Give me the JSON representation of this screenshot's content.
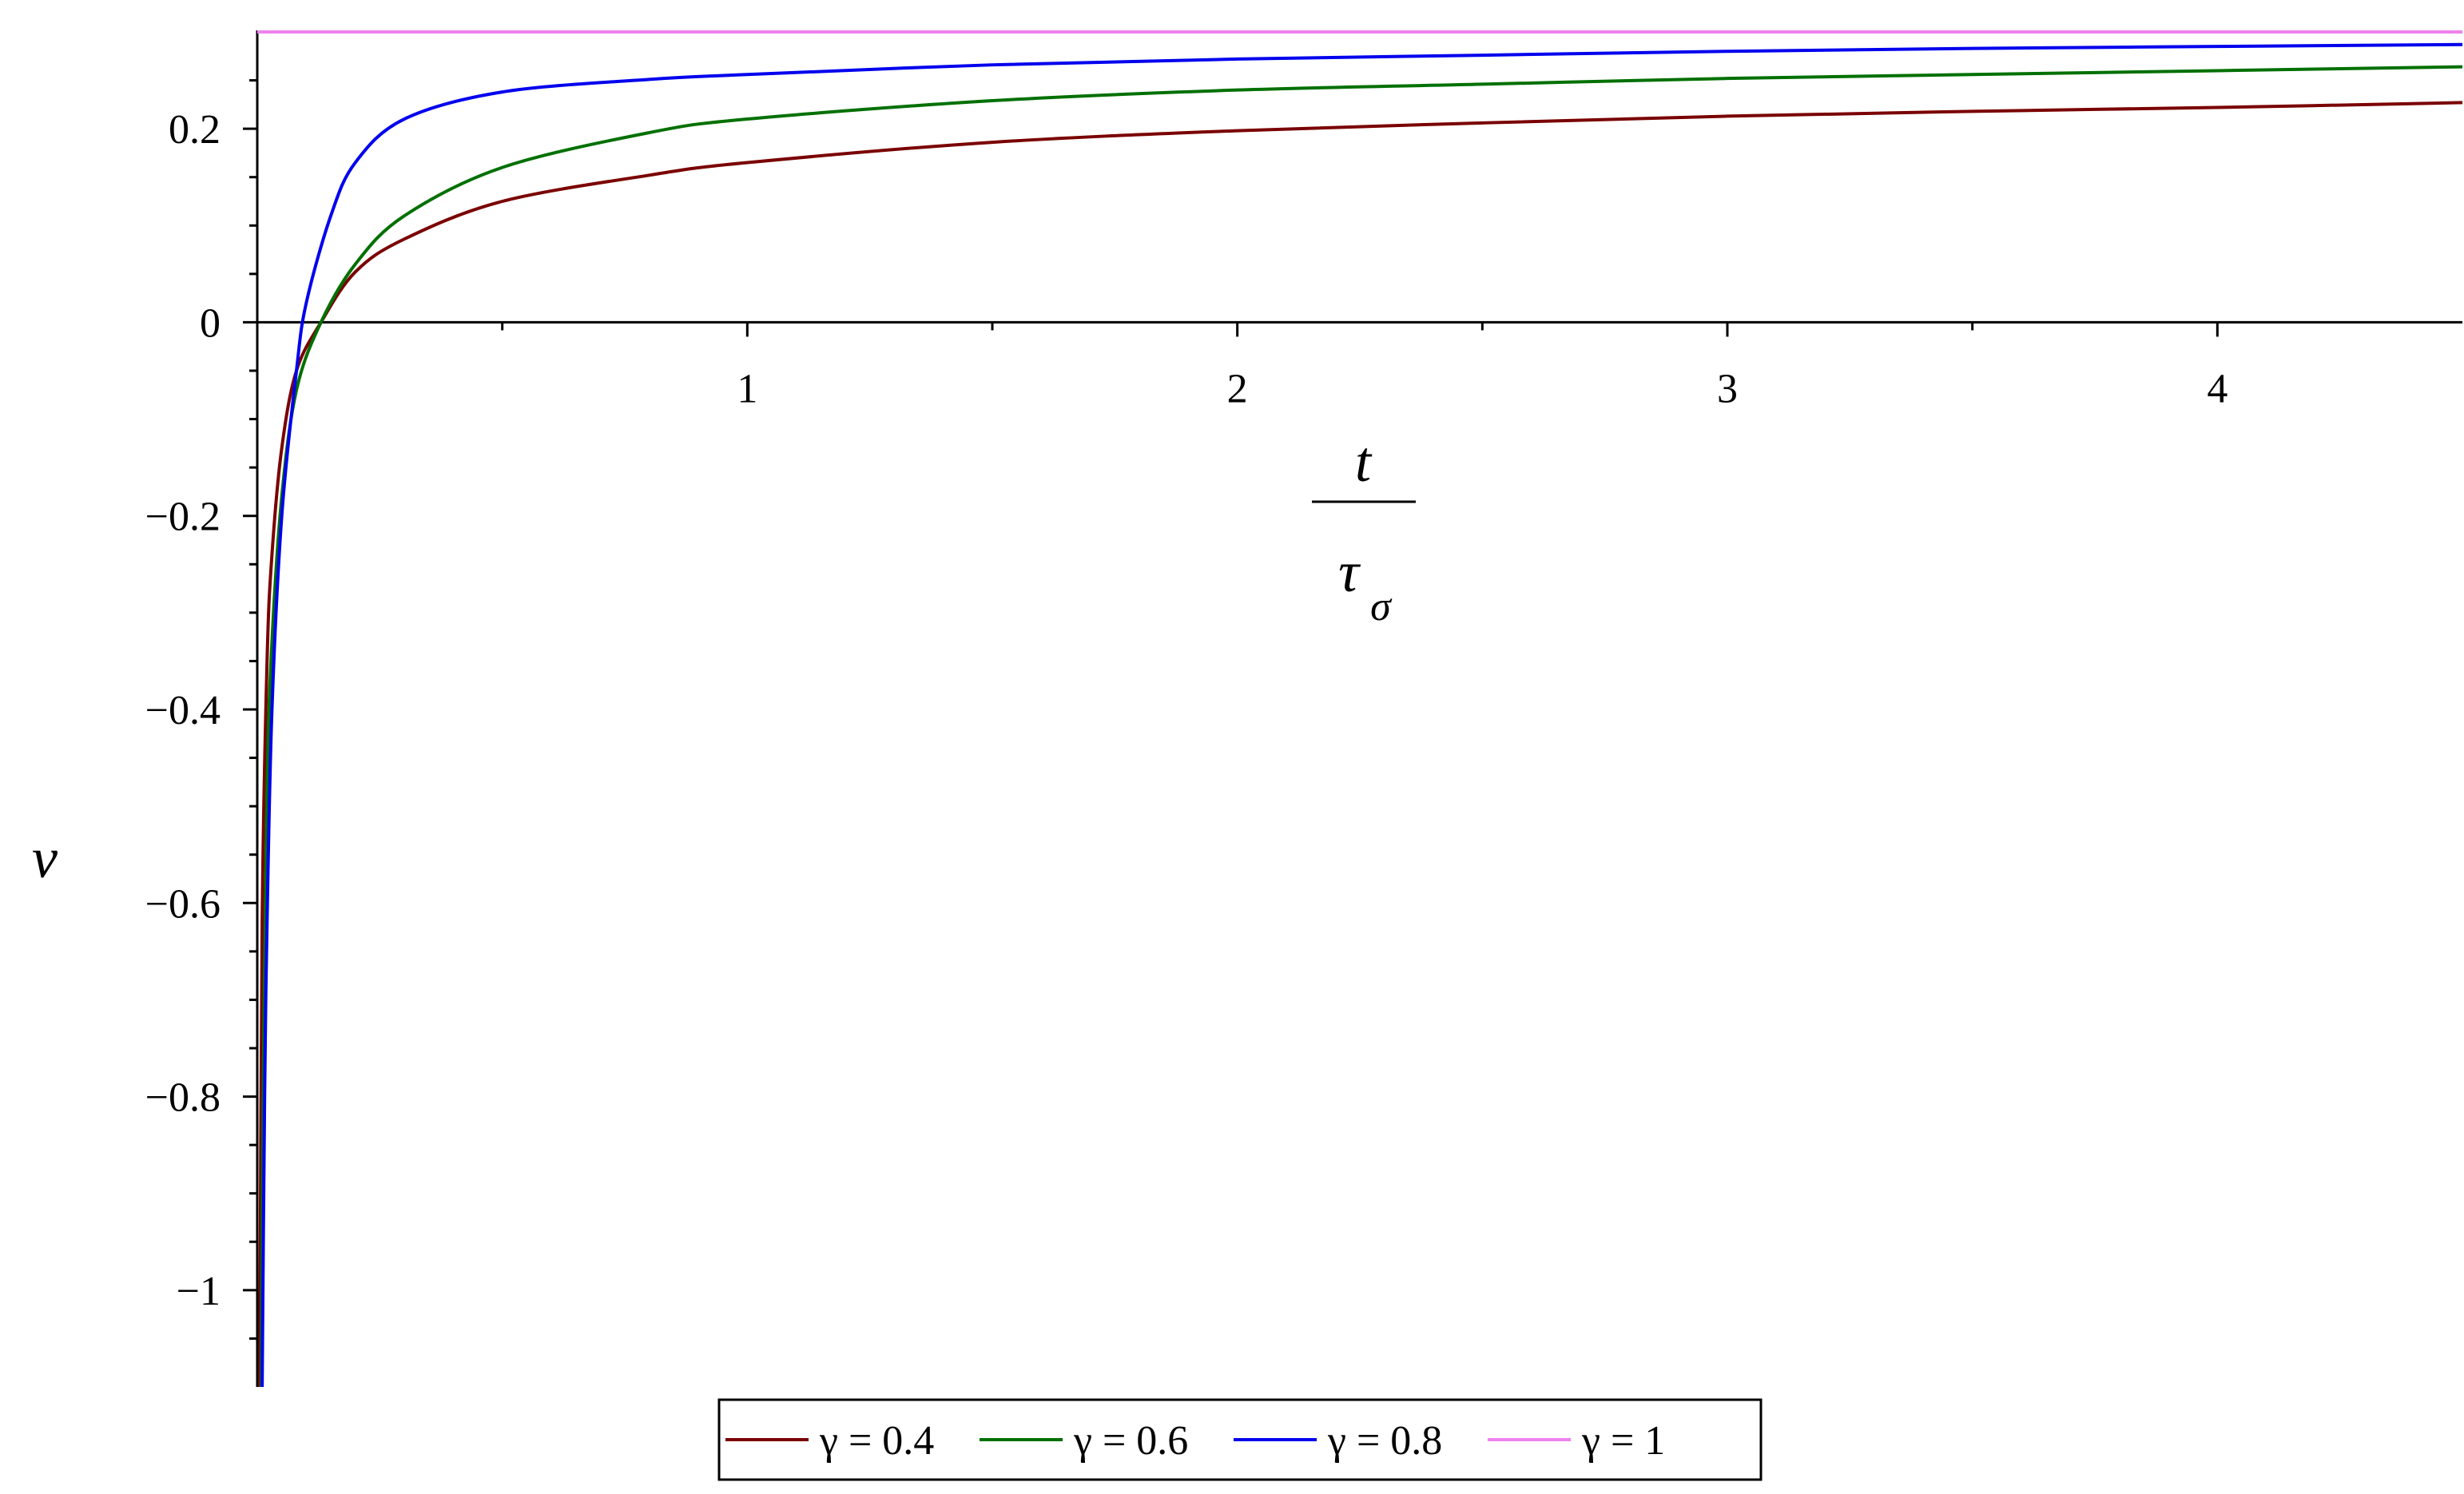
{
  "chart_data": {
    "type": "line",
    "xlabel": {
      "numerator": "t",
      "denominator": "τ",
      "denominator_subscript": "σ"
    },
    "ylabel": "ν",
    "xlim": [
      0,
      4.5
    ],
    "ylim": [
      -1.1,
      0.3
    ],
    "x_ticks": [
      1,
      2,
      3,
      4
    ],
    "x_tick_labels": [
      "1",
      "2",
      "3",
      "4"
    ],
    "y_ticks": [
      0.2,
      0,
      -0.2,
      -0.4,
      -0.6,
      -0.8,
      -1
    ],
    "y_tick_labels": [
      "0.2",
      "0",
      "−0.2",
      "−0.4",
      "−0.6",
      "−0.8",
      "−1"
    ],
    "grid": false,
    "legend_position": "bottom-center",
    "series": [
      {
        "name": "γ = 0.4",
        "color": "#7a0000",
        "x": [
          0.005,
          0.01,
          0.02,
          0.03,
          0.05,
          0.08,
          0.13,
          0.2,
          0.3,
          0.5,
          0.8,
          1,
          1.5,
          2,
          2.5,
          3,
          3.5,
          4,
          4.5
        ],
        "y": [
          -1.1,
          -0.62,
          -0.35,
          -0.24,
          -0.13,
          -0.05,
          0.0,
          0.052,
          0.086,
          0.125,
          0.152,
          0.165,
          0.186,
          0.198,
          0.206,
          0.213,
          0.218,
          0.222,
          0.227
        ]
      },
      {
        "name": "γ = 0.6",
        "color": "#007000",
        "x": [
          0.008,
          0.012,
          0.02,
          0.03,
          0.05,
          0.08,
          0.13,
          0.2,
          0.3,
          0.5,
          0.8,
          1,
          1.5,
          2,
          2.5,
          3,
          3.5,
          4,
          4.5
        ],
        "y": [
          -1.1,
          -0.8,
          -0.48,
          -0.33,
          -0.18,
          -0.07,
          0.0,
          0.06,
          0.11,
          0.16,
          0.196,
          0.21,
          0.229,
          0.24,
          0.246,
          0.252,
          0.256,
          0.26,
          0.264
        ]
      },
      {
        "name": "γ = 0.8",
        "color": "#0000ee",
        "x": [
          0.01,
          0.015,
          0.02,
          0.03,
          0.05,
          0.08,
          0.1,
          0.15,
          0.2,
          0.3,
          0.5,
          0.8,
          1,
          1.5,
          2,
          2.5,
          3,
          3.5,
          4,
          4.5
        ],
        "y": [
          -1.1,
          -0.8,
          -0.62,
          -0.4,
          -0.2,
          -0.05,
          0.02,
          0.11,
          0.165,
          0.21,
          0.238,
          0.251,
          0.256,
          0.266,
          0.272,
          0.276,
          0.28,
          0.283,
          0.285,
          0.287
        ]
      },
      {
        "name": "γ = 1",
        "color": "#ee82ee",
        "x": [
          0,
          4.5
        ],
        "y": [
          0.3,
          0.3
        ]
      }
    ]
  }
}
